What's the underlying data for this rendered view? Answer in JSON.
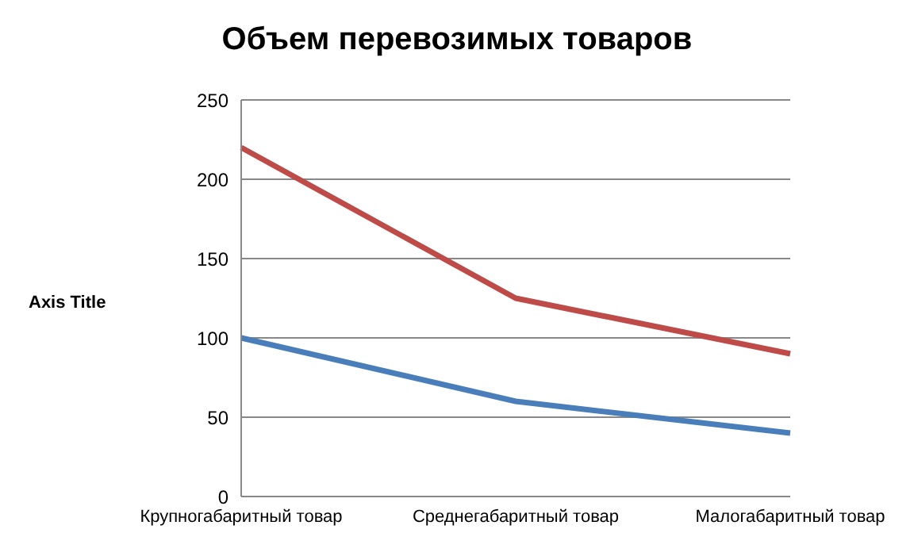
{
  "chart_data": {
    "type": "line",
    "title": "Объем перевозимых товаров",
    "ylabel": "Axis Title",
    "categories": [
      "Крупногабаритный товар",
      "Среднегабаритный товар",
      "Малогабаритный товар"
    ],
    "series": [
      {
        "color": "#be4b48",
        "values": [
          220,
          125,
          90
        ]
      },
      {
        "color": "#4a7ebb",
        "values": [
          100,
          60,
          40
        ]
      }
    ],
    "ylim": [
      0,
      250
    ],
    "yticks": [
      0,
      50,
      100,
      150,
      200,
      250
    ],
    "grid": "y",
    "legend": false,
    "marker": "none",
    "line_style": "solid"
  }
}
